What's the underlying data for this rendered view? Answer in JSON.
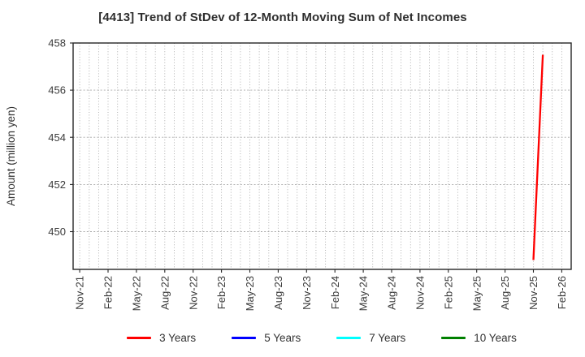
{
  "chart_data": {
    "type": "line",
    "title": "[4413]  Trend of StDev of 12-Month Moving Sum of Net Incomes",
    "xlabel": "",
    "ylabel": "Amount (million yen)",
    "y_ticks": [
      450,
      452,
      454,
      456,
      458
    ],
    "ylim": [
      448.4,
      458.0
    ],
    "x_start_month": "Nov-21",
    "x_tick_interval_months": 3,
    "x_tick_labels": [
      "Nov-21",
      "Feb-22",
      "May-22",
      "Aug-22",
      "Nov-22",
      "Feb-23",
      "May-23",
      "Aug-23",
      "Nov-23",
      "Feb-24",
      "May-24",
      "Aug-24",
      "Nov-24",
      "Feb-25",
      "May-25",
      "Aug-25",
      "Nov-25",
      "Feb-26"
    ],
    "xlim_months": [
      -0.7,
      52.0
    ],
    "grid": {
      "vertical": "monthly dotted",
      "horizontal": "dotted at each y tick",
      "color": "#a8a8a8"
    },
    "frame_color": "#262626",
    "background": "#ffffff",
    "legend_position": "bottom-center",
    "series": [
      {
        "name": "3 Years",
        "color": "#ff0000",
        "points": [
          {
            "x": "Nov-25",
            "y": 448.8
          },
          {
            "x": "Dec-25",
            "y": 457.5
          }
        ]
      },
      {
        "name": "5 Years",
        "color": "#0000ff",
        "points": []
      },
      {
        "name": "7 Years",
        "color": "#00ffff",
        "points": []
      },
      {
        "name": "10 Years",
        "color": "#008000",
        "points": []
      }
    ]
  }
}
